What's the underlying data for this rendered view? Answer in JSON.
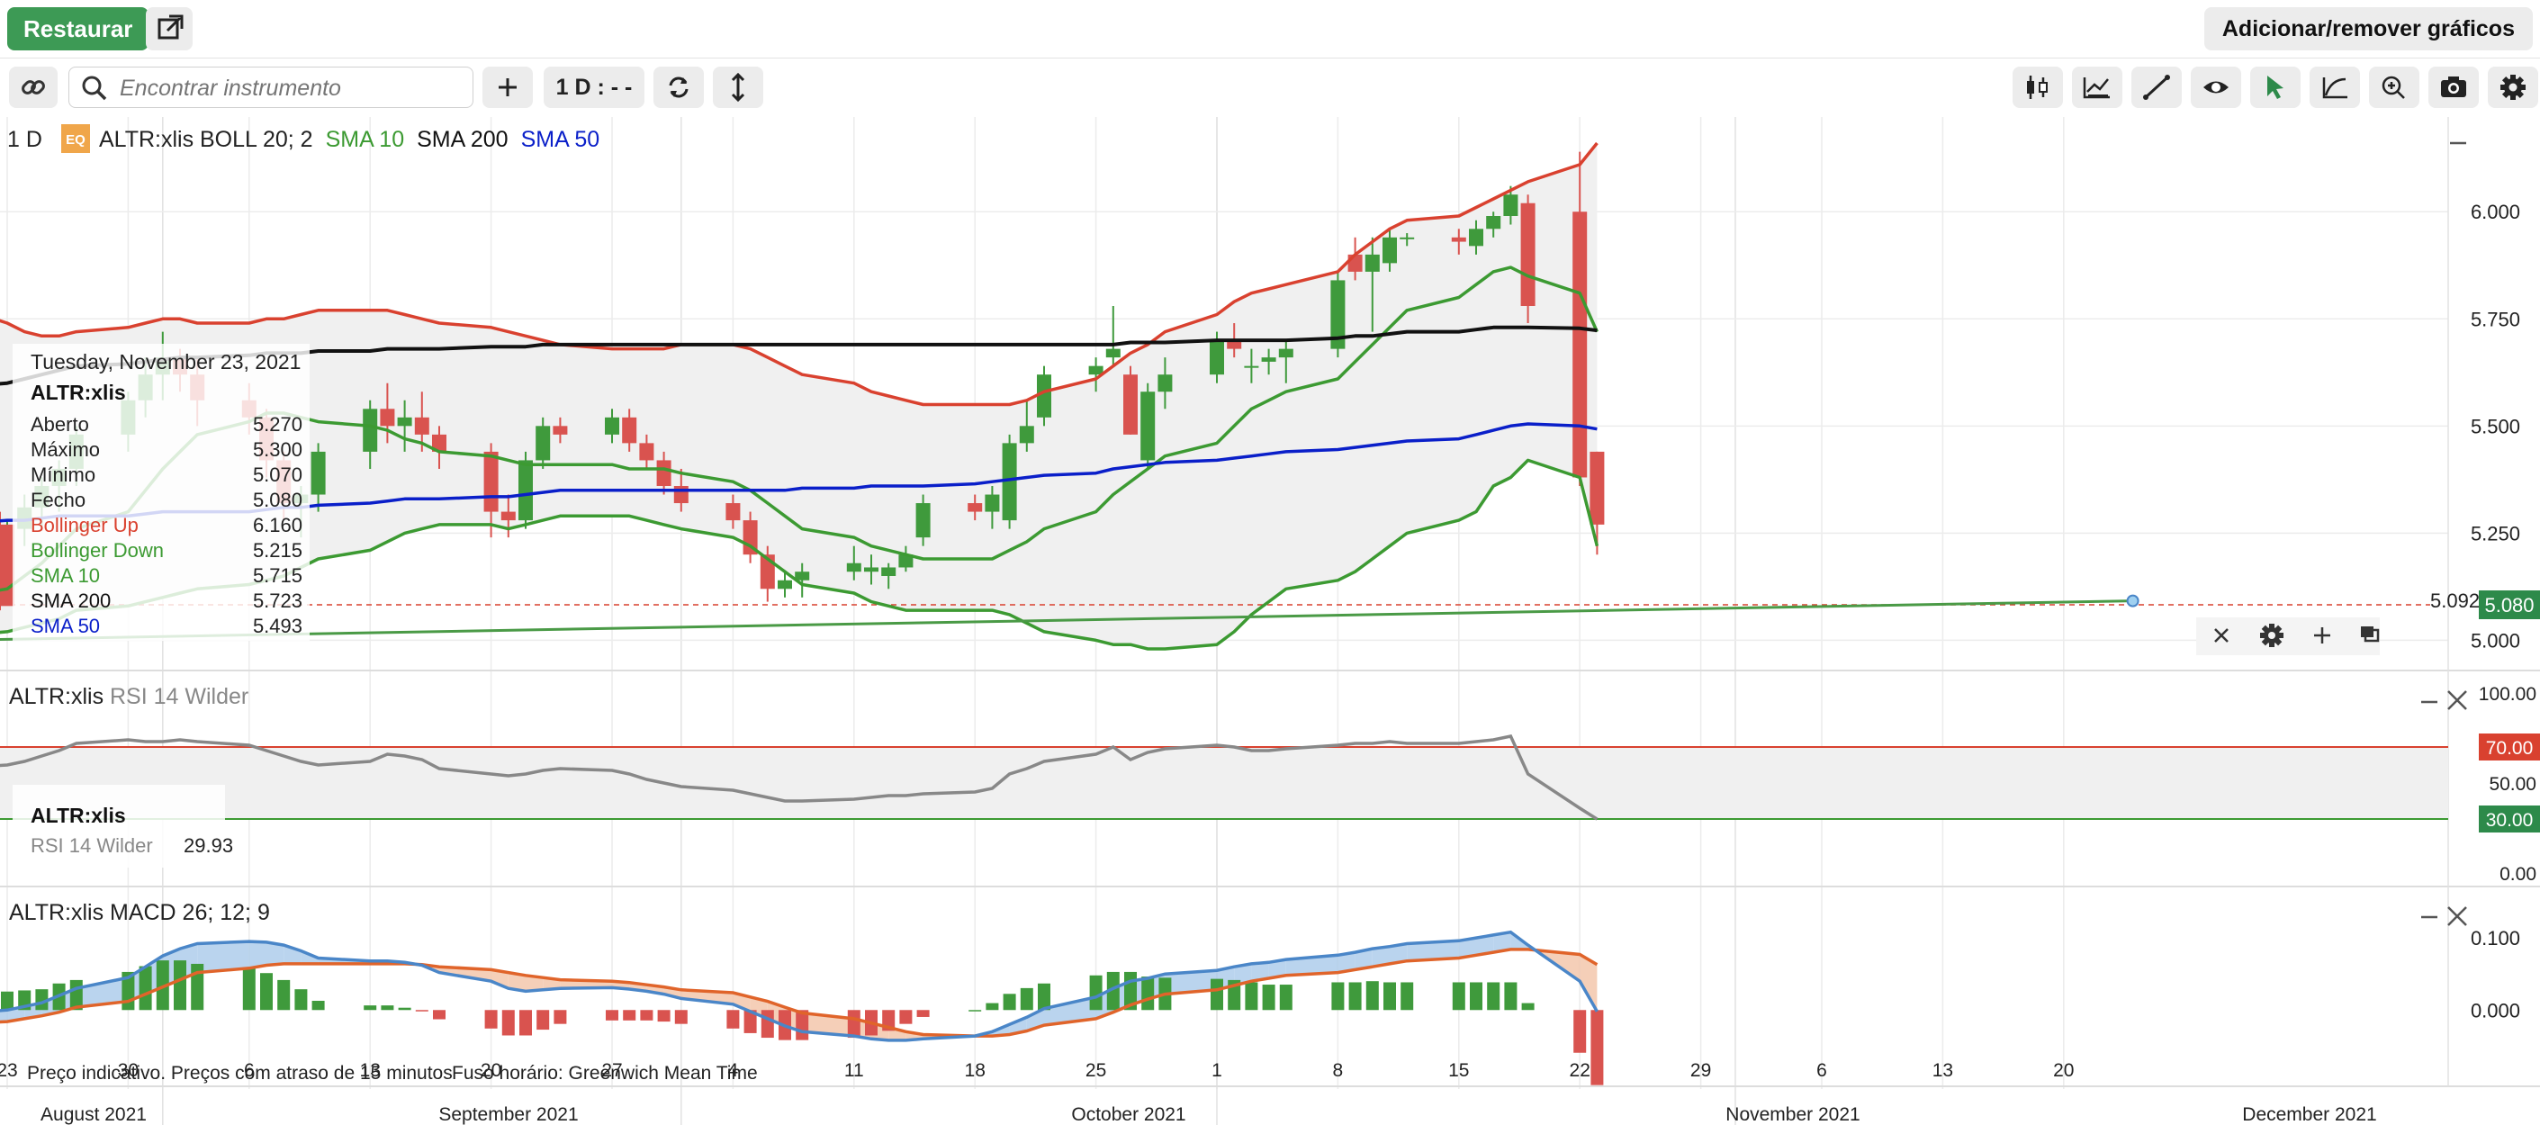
{
  "header": {
    "restore_label": "Restaurar",
    "add_remove_label": "Adicionar/remover gráficos"
  },
  "toolbar": {
    "search_placeholder": "Encontrar instrumento",
    "interval_label": "1 D : - -",
    "left_icons": [
      "link-icon",
      "search-icon",
      "plus-icon",
      "refresh-icon",
      "expand-vertical-icon"
    ],
    "right_icons": [
      "candlestick-icon",
      "indicator-chart-icon",
      "draw-line-icon",
      "eye-icon",
      "cursor-arrow-icon",
      "curve-icon",
      "zoom-in-icon",
      "camera-icon",
      "gear-icon"
    ]
  },
  "colors": {
    "up": "#3f9a3c",
    "down": "#d9534f",
    "boll_up": "#d9412f",
    "boll_down": "#3c9a32",
    "sma10": "#3c9a32",
    "sma200": "#111111",
    "sma50": "#0a1fc9",
    "macd": "#4a86c8",
    "signal": "#e0642a",
    "rsi": "#888888",
    "price_marker": "#2d8a4a"
  },
  "main_panel": {
    "interval": "1 D",
    "instrument_badge": "EQ",
    "instrument": "ALTR:xlis",
    "legend": [
      {
        "label": "BOLL 20; 2",
        "color": "#222222"
      },
      {
        "label": "SMA 10",
        "color": "#3c9a32"
      },
      {
        "label": "SMA 200",
        "color": "#111111"
      },
      {
        "label": "SMA 50",
        "color": "#0a1fc9"
      }
    ],
    "y_ticks": [
      "6.000",
      "5.750",
      "5.500",
      "5.250",
      "5.000"
    ],
    "last_price": "5.080",
    "trendline_value": "5.092"
  },
  "tooltip": {
    "date": "Tuesday, November 23, 2021",
    "instrument": "ALTR:xlis",
    "rows": [
      {
        "label": "Aberto",
        "value": "5.270",
        "color": "#222222"
      },
      {
        "label": "Máximo",
        "value": "5.300",
        "color": "#222222"
      },
      {
        "label": "Mínimo",
        "value": "5.070",
        "color": "#222222"
      },
      {
        "label": "Fecho",
        "value": "5.080",
        "color": "#222222"
      },
      {
        "label": "Bollinger Up",
        "value": "6.160",
        "color": "#d9412f"
      },
      {
        "label": "Bollinger Down",
        "value": "5.215",
        "color": "#3c9a32"
      },
      {
        "label": "SMA 10",
        "value": "5.715",
        "color": "#3c9a32"
      },
      {
        "label": "SMA 200",
        "value": "5.723",
        "color": "#111111"
      },
      {
        "label": "SMA 50",
        "value": "5.493",
        "color": "#0a1fc9"
      }
    ]
  },
  "rsi_panel": {
    "title": "ALTR:xlis",
    "indicator": "RSI 14 Wilder",
    "y_ticks": [
      "100.00",
      "50.00",
      "0.00"
    ],
    "levels": [
      "70.00",
      "30.00"
    ],
    "tooltip_instrument": "ALTR:xlis",
    "tooltip_label": "RSI 14 Wilder",
    "tooltip_value": "29.93"
  },
  "macd_panel": {
    "title": "ALTR:xlis",
    "indicator": "MACD 26; 12; 9",
    "y_ticks": [
      "0.100",
      "0.000"
    ]
  },
  "footer": {
    "disclaimer": "Preço indicativo. Preços com atraso de 15 minutos",
    "timezone": "Fuso horário: Greenwich Mean Time"
  },
  "x_axis": {
    "day_ticks": [
      "23",
      "30",
      "6",
      "13",
      "20",
      "27",
      "4",
      "11",
      "18",
      "25",
      "1",
      "8",
      "15",
      "22",
      "29",
      "6",
      "13",
      "20"
    ],
    "month_labels": [
      "August 2021",
      "September 2021",
      "October 2021",
      "November 2021",
      "December 2021"
    ]
  },
  "chart_data": [
    {
      "type": "candlestick",
      "title": "ALTR:xlis",
      "ylim": [
        4.94,
        6.2
      ],
      "dates": [
        "2021-08-20",
        "2021-08-23",
        "2021-08-24",
        "2021-08-25",
        "2021-08-26",
        "2021-08-27",
        "2021-08-30",
        "2021-08-31",
        "2021-09-01",
        "2021-09-02",
        "2021-09-03",
        "2021-09-06",
        "2021-09-07",
        "2021-09-08",
        "2021-09-09",
        "2021-09-10",
        "2021-09-13",
        "2021-09-14",
        "2021-09-15",
        "2021-09-16",
        "2021-09-17",
        "2021-09-20",
        "2021-09-21",
        "2021-09-22",
        "2021-09-23",
        "2021-09-24",
        "2021-09-27",
        "2021-09-28",
        "2021-09-29",
        "2021-09-30",
        "2021-10-01",
        "2021-10-04",
        "2021-10-05",
        "2021-10-06",
        "2021-10-07",
        "2021-10-08",
        "2021-10-11",
        "2021-10-12",
        "2021-10-13",
        "2021-10-14",
        "2021-10-15",
        "2021-10-18",
        "2021-10-19",
        "2021-10-20",
        "2021-10-21",
        "2021-10-22",
        "2021-10-25",
        "2021-10-26",
        "2021-10-27",
        "2021-10-28",
        "2021-10-29",
        "2021-11-01",
        "2021-11-02",
        "2021-11-03",
        "2021-11-04",
        "2021-11-05",
        "2021-11-08",
        "2021-11-09",
        "2021-11-10",
        "2021-11-11",
        "2021-11-12",
        "2021-11-15",
        "2021-11-16",
        "2021-11-17",
        "2021-11-18",
        "2021-11-19",
        "2021-11-22",
        "2021-11-23"
      ],
      "ohlc": [
        [
          5.16,
          5.22,
          5.1,
          5.18
        ],
        [
          5.18,
          5.28,
          5.12,
          5.26
        ],
        [
          5.26,
          5.34,
          5.22,
          5.31
        ],
        [
          5.31,
          5.38,
          5.26,
          5.36
        ],
        [
          5.36,
          5.42,
          5.3,
          5.4
        ],
        [
          5.4,
          5.5,
          5.36,
          5.48
        ],
        [
          5.48,
          5.58,
          5.44,
          5.56
        ],
        [
          5.56,
          5.66,
          5.52,
          5.62
        ],
        [
          5.62,
          5.72,
          5.56,
          5.66
        ],
        [
          5.66,
          5.68,
          5.58,
          5.62
        ],
        [
          5.62,
          5.66,
          5.5,
          5.56
        ],
        [
          5.56,
          5.6,
          5.48,
          5.52
        ],
        [
          5.52,
          5.54,
          5.38,
          5.42
        ],
        [
          5.42,
          5.44,
          5.28,
          5.32
        ],
        [
          5.32,
          5.36,
          5.24,
          5.34
        ],
        [
          5.34,
          5.46,
          5.3,
          5.44
        ],
        [
          5.44,
          5.56,
          5.4,
          5.54
        ],
        [
          5.54,
          5.6,
          5.46,
          5.5
        ],
        [
          5.5,
          5.56,
          5.44,
          5.52
        ],
        [
          5.52,
          5.58,
          5.44,
          5.48
        ],
        [
          5.48,
          5.5,
          5.4,
          5.44
        ],
        [
          5.44,
          5.46,
          5.24,
          5.3
        ],
        [
          5.3,
          5.34,
          5.24,
          5.28
        ],
        [
          5.28,
          5.44,
          5.26,
          5.42
        ],
        [
          5.42,
          5.52,
          5.4,
          5.5
        ],
        [
          5.5,
          5.52,
          5.46,
          5.48
        ],
        [
          5.48,
          5.54,
          5.46,
          5.52
        ],
        [
          5.52,
          5.54,
          5.44,
          5.46
        ],
        [
          5.46,
          5.48,
          5.4,
          5.42
        ],
        [
          5.42,
          5.44,
          5.34,
          5.36
        ],
        [
          5.36,
          5.4,
          5.3,
          5.32
        ],
        [
          5.32,
          5.34,
          5.26,
          5.28
        ],
        [
          5.28,
          5.3,
          5.18,
          5.2
        ],
        [
          5.2,
          5.22,
          5.09,
          5.12
        ],
        [
          5.12,
          5.16,
          5.1,
          5.14
        ],
        [
          5.14,
          5.18,
          5.1,
          5.16
        ],
        [
          5.16,
          5.22,
          5.14,
          5.18
        ],
        [
          5.16,
          5.2,
          5.13,
          5.17
        ],
        [
          5.15,
          5.18,
          5.12,
          5.17
        ],
        [
          5.17,
          5.22,
          5.16,
          5.2
        ],
        [
          5.24,
          5.34,
          5.22,
          5.32
        ],
        [
          5.32,
          5.34,
          5.28,
          5.3
        ],
        [
          5.3,
          5.36,
          5.26,
          5.34
        ],
        [
          5.28,
          5.48,
          5.26,
          5.46
        ],
        [
          5.46,
          5.56,
          5.44,
          5.5
        ],
        [
          5.52,
          5.64,
          5.5,
          5.62
        ],
        [
          5.62,
          5.66,
          5.58,
          5.64
        ],
        [
          5.66,
          5.78,
          5.64,
          5.68
        ],
        [
          5.62,
          5.64,
          5.48,
          5.48
        ],
        [
          5.42,
          5.6,
          5.4,
          5.58
        ],
        [
          5.58,
          5.66,
          5.54,
          5.62
        ],
        [
          5.62,
          5.72,
          5.6,
          5.7
        ],
        [
          5.7,
          5.74,
          5.66,
          5.68
        ],
        [
          5.64,
          5.68,
          5.6,
          5.64
        ],
        [
          5.65,
          5.68,
          5.62,
          5.66
        ],
        [
          5.66,
          5.7,
          5.6,
          5.68
        ],
        [
          5.68,
          5.86,
          5.66,
          5.84
        ],
        [
          5.9,
          5.94,
          5.84,
          5.86
        ],
        [
          5.86,
          5.94,
          5.72,
          5.9
        ],
        [
          5.88,
          5.96,
          5.86,
          5.94
        ],
        [
          5.94,
          5.95,
          5.92,
          5.94
        ],
        [
          5.94,
          5.96,
          5.9,
          5.93
        ],
        [
          5.92,
          5.98,
          5.9,
          5.96
        ],
        [
          5.96,
          6.0,
          5.94,
          5.99
        ],
        [
          5.99,
          6.06,
          5.97,
          6.04
        ],
        [
          6.02,
          6.04,
          5.74,
          5.78
        ],
        [
          6.0,
          6.14,
          5.36,
          5.38
        ],
        [
          5.44,
          5.44,
          5.2,
          5.27
        ],
        [
          5.27,
          5.3,
          5.07,
          5.08
        ]
      ],
      "boll_up": [
        5.78,
        5.74,
        5.72,
        5.71,
        5.71,
        5.72,
        5.73,
        5.74,
        5.75,
        5.75,
        5.74,
        5.74,
        5.75,
        5.75,
        5.76,
        5.77,
        5.77,
        5.77,
        5.76,
        5.75,
        5.74,
        5.73,
        5.72,
        5.71,
        5.7,
        5.69,
        5.68,
        5.68,
        5.68,
        5.68,
        5.69,
        5.69,
        5.68,
        5.66,
        5.64,
        5.62,
        5.6,
        5.58,
        5.57,
        5.56,
        5.55,
        5.55,
        5.55,
        5.55,
        5.56,
        5.58,
        5.61,
        5.64,
        5.67,
        5.69,
        5.72,
        5.76,
        5.79,
        5.81,
        5.82,
        5.83,
        5.86,
        5.9,
        5.93,
        5.96,
        5.98,
        5.99,
        6.01,
        6.03,
        6.05,
        6.07,
        6.11,
        6.16
      ],
      "boll_down": [
        5.01,
        5.02,
        5.03,
        5.04,
        5.05,
        5.07,
        5.08,
        5.09,
        5.1,
        5.11,
        5.12,
        5.13,
        5.14,
        5.15,
        5.17,
        5.19,
        5.21,
        5.23,
        5.25,
        5.26,
        5.27,
        5.27,
        5.26,
        5.27,
        5.28,
        5.29,
        5.29,
        5.29,
        5.28,
        5.27,
        5.26,
        5.24,
        5.22,
        5.19,
        5.16,
        5.13,
        5.11,
        5.09,
        5.08,
        5.07,
        5.07,
        5.07,
        5.07,
        5.06,
        5.04,
        5.02,
        5.0,
        4.99,
        4.99,
        4.98,
        4.98,
        4.99,
        5.02,
        5.06,
        5.09,
        5.12,
        5.14,
        5.16,
        5.19,
        5.22,
        5.25,
        5.28,
        5.3,
        5.36,
        5.38,
        5.42,
        5.38,
        5.22
      ],
      "sma10": [
        5.1,
        5.12,
        5.15,
        5.18,
        5.22,
        5.26,
        5.3,
        5.35,
        5.4,
        5.44,
        5.48,
        5.51,
        5.53,
        5.53,
        5.52,
        5.51,
        5.5,
        5.49,
        5.47,
        5.46,
        5.44,
        5.43,
        5.42,
        5.41,
        5.41,
        5.41,
        5.41,
        5.4,
        5.4,
        5.4,
        5.39,
        5.37,
        5.35,
        5.32,
        5.29,
        5.26,
        5.24,
        5.22,
        5.21,
        5.2,
        5.19,
        5.19,
        5.19,
        5.21,
        5.23,
        5.26,
        5.3,
        5.34,
        5.37,
        5.4,
        5.43,
        5.46,
        5.5,
        5.54,
        5.56,
        5.58,
        5.61,
        5.65,
        5.69,
        5.73,
        5.77,
        5.8,
        5.83,
        5.86,
        5.87,
        5.85,
        5.81,
        5.72
      ],
      "sma200": [
        5.59,
        5.6,
        5.61,
        5.62,
        5.63,
        5.64,
        5.645,
        5.65,
        5.655,
        5.66,
        5.66,
        5.665,
        5.67,
        5.67,
        5.67,
        5.675,
        5.675,
        5.68,
        5.68,
        5.68,
        5.68,
        5.685,
        5.685,
        5.685,
        5.69,
        5.69,
        5.69,
        5.69,
        5.69,
        5.69,
        5.69,
        5.69,
        5.69,
        5.69,
        5.69,
        5.69,
        5.69,
        5.69,
        5.69,
        5.69,
        5.69,
        5.69,
        5.69,
        5.69,
        5.69,
        5.69,
        5.69,
        5.69,
        5.695,
        5.695,
        5.695,
        5.7,
        5.7,
        5.7,
        5.7,
        5.7,
        5.705,
        5.71,
        5.71,
        5.715,
        5.72,
        5.72,
        5.725,
        5.73,
        5.73,
        5.73,
        5.728,
        5.723
      ],
      "sma50": [
        5.27,
        5.28,
        5.28,
        5.285,
        5.29,
        5.29,
        5.29,
        5.295,
        5.3,
        5.3,
        5.3,
        5.3,
        5.305,
        5.31,
        5.31,
        5.315,
        5.32,
        5.325,
        5.33,
        5.33,
        5.33,
        5.335,
        5.335,
        5.34,
        5.345,
        5.35,
        5.35,
        5.35,
        5.35,
        5.35,
        5.35,
        5.35,
        5.35,
        5.35,
        5.35,
        5.355,
        5.355,
        5.36,
        5.36,
        5.36,
        5.36,
        5.365,
        5.37,
        5.375,
        5.38,
        5.385,
        5.39,
        5.4,
        5.405,
        5.41,
        5.415,
        5.42,
        5.425,
        5.43,
        5.435,
        5.44,
        5.445,
        5.45,
        5.455,
        5.46,
        5.465,
        5.47,
        5.48,
        5.49,
        5.5,
        5.505,
        5.5,
        5.493
      ],
      "trendline": [
        [
          5.0,
          "2021-08-20"
        ],
        [
          5.092,
          "2021-12-24"
        ]
      ]
    },
    {
      "type": "line",
      "title": "RSI 14 Wilder",
      "ylim": [
        0,
        100
      ],
      "levels": [
        70,
        30
      ],
      "values": [
        58,
        60,
        62,
        65,
        68,
        72,
        74,
        73,
        73,
        74,
        73,
        71,
        68,
        65,
        62,
        60,
        62,
        66,
        65,
        63,
        58,
        55,
        54,
        55,
        57,
        58,
        57,
        55,
        52,
        50,
        48,
        46,
        44,
        42,
        40,
        40,
        41,
        42,
        43,
        43,
        44,
        45,
        47,
        55,
        58,
        62,
        66,
        70,
        63,
        67,
        69,
        71,
        70,
        68,
        68,
        69,
        71,
        72,
        72,
        73,
        72,
        72,
        73,
        74,
        76,
        55,
        36,
        29.93
      ]
    },
    {
      "type": "bar+line",
      "title": "MACD 26; 12; 9",
      "ylim": [
        -0.072,
        0.14
      ],
      "macd": [
        -0.005,
        0.0,
        0.005,
        0.01,
        0.02,
        0.03,
        0.045,
        0.06,
        0.075,
        0.085,
        0.092,
        0.095,
        0.094,
        0.09,
        0.082,
        0.072,
        0.068,
        0.068,
        0.066,
        0.062,
        0.052,
        0.04,
        0.03,
        0.026,
        0.028,
        0.03,
        0.031,
        0.029,
        0.026,
        0.022,
        0.016,
        0.008,
        -0.002,
        -0.012,
        -0.022,
        -0.03,
        -0.036,
        -0.04,
        -0.042,
        -0.042,
        -0.04,
        -0.036,
        -0.03,
        -0.02,
        -0.01,
        0.002,
        0.018,
        0.03,
        0.04,
        0.044,
        0.05,
        0.055,
        0.06,
        0.064,
        0.066,
        0.07,
        0.076,
        0.08,
        0.085,
        0.088,
        0.092,
        0.096,
        0.1,
        0.104,
        0.108,
        0.09,
        0.04,
        -0.002
      ],
      "signal": [
        -0.02,
        -0.016,
        -0.012,
        -0.008,
        -0.003,
        0.004,
        0.012,
        0.022,
        0.032,
        0.042,
        0.052,
        0.058,
        0.062,
        0.064,
        0.064,
        0.064,
        0.064,
        0.064,
        0.064,
        0.063,
        0.06,
        0.056,
        0.052,
        0.048,
        0.045,
        0.042,
        0.04,
        0.038,
        0.035,
        0.032,
        0.028,
        0.024,
        0.018,
        0.012,
        0.004,
        -0.004,
        -0.012,
        -0.018,
        -0.024,
        -0.03,
        -0.034,
        -0.036,
        -0.036,
        -0.034,
        -0.029,
        -0.021,
        -0.012,
        -0.003,
        0.007,
        0.015,
        0.022,
        0.028,
        0.034,
        0.04,
        0.044,
        0.048,
        0.052,
        0.056,
        0.06,
        0.064,
        0.068,
        0.072,
        0.076,
        0.08,
        0.084,
        0.084,
        0.077,
        0.063
      ]
    }
  ]
}
